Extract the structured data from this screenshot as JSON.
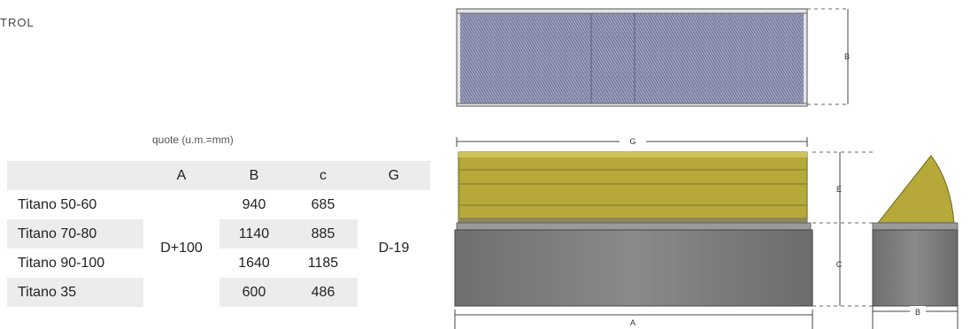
{
  "page": {
    "heading_fragment": "TROL",
    "table_title": "quote (u.m.=mm)"
  },
  "table": {
    "headers": [
      "",
      "A",
      "B",
      "c",
      "G"
    ],
    "rows": [
      {
        "model": "Titano 50-60",
        "B": "940",
        "C": "685"
      },
      {
        "model": "Titano 70-80",
        "B": "1140",
        "C": "885"
      },
      {
        "model": "Titano 90-100",
        "B": "1640",
        "C": "1185"
      },
      {
        "model": "Titano 35",
        "B": "600",
        "C": "486"
      }
    ],
    "merged_A": "D+100",
    "merged_G": "D-19"
  },
  "drawing_labels": {
    "top_view_B": "B",
    "front_G": "G",
    "front_E": "E",
    "front_C": "C",
    "front_A": "A",
    "side_B": "B"
  },
  "colors": {
    "cover_yellow": "#b8aa3a",
    "base_grey": "#7b7b7b",
    "mesh_blue": "#8a8eae",
    "row_shade": "#ececec"
  }
}
